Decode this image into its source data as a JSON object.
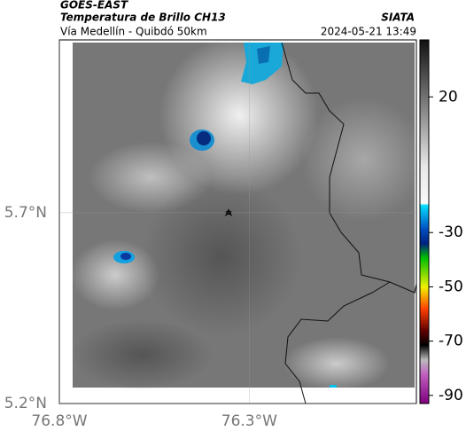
{
  "header": {
    "source": "GOES-EAST",
    "product": "Temperatura de Brillo CH13",
    "brand": "SIATA",
    "region": "Vía Medellín - Quibdó 50km",
    "timestamp": "2024-05-21 13:49"
  },
  "map": {
    "xlim": [
      -76.8,
      -75.86
    ],
    "ylim": [
      5.2,
      6.153
    ],
    "xticks": [
      {
        "value": -76.8,
        "label": "76.8°W"
      },
      {
        "value": -76.3,
        "label": "76.3°W"
      }
    ],
    "yticks": [
      {
        "value": 5.2,
        "label": "5.2°N"
      },
      {
        "value": 5.7,
        "label": "5.7°N"
      }
    ]
  },
  "colorbar": {
    "clim": [
      41,
      -93
    ],
    "ticks": [
      20,
      -30,
      -50,
      -70,
      -90
    ]
  }
}
